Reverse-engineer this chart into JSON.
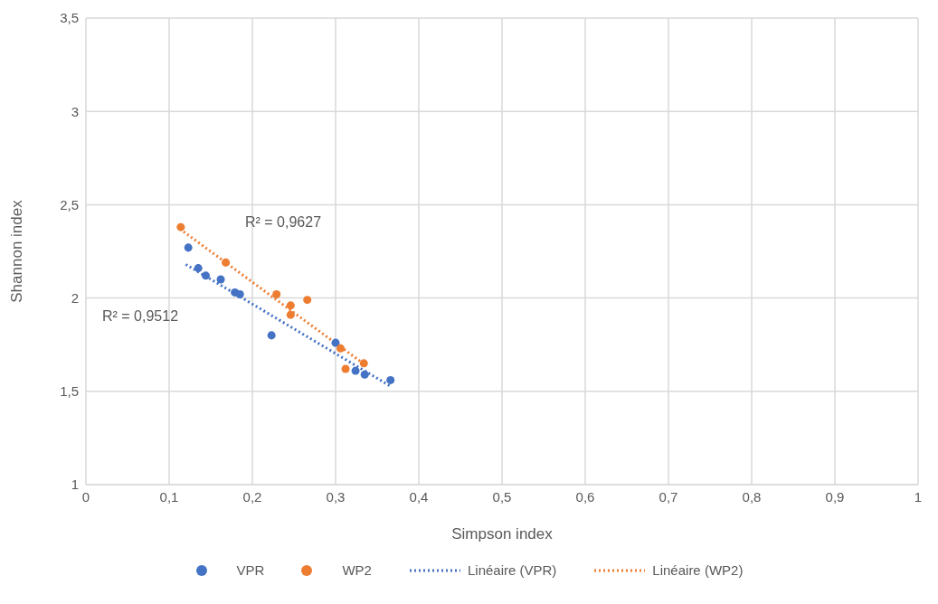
{
  "chart_data": {
    "type": "scatter",
    "xlabel": "Simpson index",
    "ylabel": "Shannon index",
    "xlim": [
      0,
      1
    ],
    "xticks": [
      0,
      {
        "value": 0.1,
        "label": "0,1"
      },
      {
        "value": 0.2,
        "label": "0,2"
      },
      {
        "value": 0.3,
        "label": "0,3"
      },
      {
        "value": 0.4,
        "label": "0,4"
      },
      {
        "value": 0.5,
        "label": "0,5"
      },
      {
        "value": 0.6,
        "label": "0,6"
      },
      {
        "value": 0.7,
        "label": "0,7"
      },
      {
        "value": 0.8,
        "label": "0,8"
      },
      {
        "value": 0.9,
        "label": "0,9"
      },
      1
    ],
    "ylim": [
      1,
      3.5
    ],
    "yticks": [
      1,
      {
        "value": 1.5,
        "label": "1,5"
      },
      2,
      {
        "value": 2.5,
        "label": "2,5"
      },
      3,
      {
        "value": 3.5,
        "label": "3,5"
      }
    ],
    "grid": true,
    "legend": "bottom",
    "marker": "circle",
    "series": [
      {
        "name": "VPR",
        "color": "#4472c4",
        "x": [
          0.123,
          0.135,
          0.144,
          0.162,
          0.179,
          0.185,
          0.223,
          0.3,
          0.324,
          0.335,
          0.366
        ],
        "values": [
          2.27,
          2.16,
          2.12,
          2.1,
          2.03,
          2.02,
          1.8,
          1.76,
          1.61,
          1.59,
          1.56
        ]
      },
      {
        "name": "WP2",
        "color": "#ed7d31",
        "x": [
          0.114,
          0.168,
          0.229,
          0.246,
          0.246,
          0.266,
          0.306,
          0.312,
          0.334
        ],
        "values": [
          2.38,
          2.19,
          2.02,
          1.96,
          1.91,
          1.99,
          1.73,
          1.62,
          1.65
        ]
      },
      {
        "name": "Linéaire (VPR)",
        "type": "line",
        "color": "#4472c4",
        "line_style": "dotted",
        "marker": "none",
        "x": [
          0.12,
          0.365
        ],
        "values": [
          2.18,
          1.53
        ]
      },
      {
        "name": "Linéaire (WP2)",
        "type": "line",
        "color": "#ed7d31",
        "line_style": "dotted",
        "marker": "none",
        "x": [
          0.113,
          0.333
        ],
        "values": [
          2.37,
          1.65
        ]
      }
    ],
    "annotations": [
      "R² = 0,9627",
      "R² = 0,9512"
    ]
  }
}
